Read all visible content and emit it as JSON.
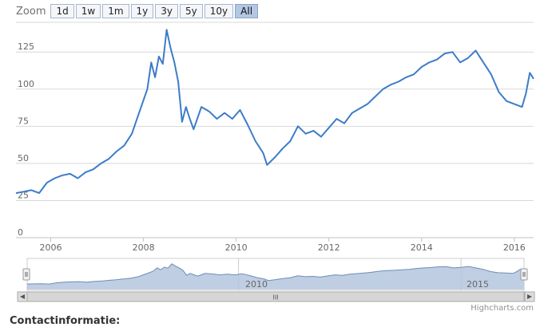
{
  "zoom": {
    "label": "Zoom",
    "buttons": [
      "1d",
      "1w",
      "1m",
      "1y",
      "3y",
      "5y",
      "10y",
      "All"
    ],
    "active": "All"
  },
  "credits": "Highcharts.com",
  "footer_text": "Contactinformatie:",
  "navigator": {
    "scrollbar_grip": "III",
    "year_labels": [
      "2010",
      "2015"
    ]
  },
  "colors": {
    "line": "#3d7cc9",
    "grid": "#d8d8d8",
    "navigator_fill": "#b4c6dd",
    "navigator_line": "#6d8db8",
    "active_button": "#b3c7e3"
  },
  "chart_data": {
    "type": "line",
    "xlim": [
      "2005-04",
      "2016-06"
    ],
    "ylim": [
      0,
      145
    ],
    "y_ticks": [
      0,
      25,
      50,
      75,
      100,
      125
    ],
    "x_tick_labels": [
      "2006",
      "2008",
      "2010",
      "2012",
      "2014",
      "2016"
    ],
    "grid": true,
    "series": [
      {
        "points": [
          [
            "2005-04",
            30
          ],
          [
            "2005-06",
            31
          ],
          [
            "2005-08",
            32
          ],
          [
            "2005-10",
            30
          ],
          [
            "2005-12",
            37
          ],
          [
            "2006-02",
            40
          ],
          [
            "2006-04",
            42
          ],
          [
            "2006-06",
            43
          ],
          [
            "2006-08",
            40
          ],
          [
            "2006-10",
            44
          ],
          [
            "2006-12",
            46
          ],
          [
            "2007-02",
            50
          ],
          [
            "2007-04",
            53
          ],
          [
            "2007-06",
            58
          ],
          [
            "2007-08",
            62
          ],
          [
            "2007-10",
            70
          ],
          [
            "2007-12",
            85
          ],
          [
            "2008-02",
            100
          ],
          [
            "2008-03",
            118
          ],
          [
            "2008-04",
            108
          ],
          [
            "2008-05",
            122
          ],
          [
            "2008-06",
            117
          ],
          [
            "2008-07",
            140
          ],
          [
            "2008-08",
            128
          ],
          [
            "2008-09",
            118
          ],
          [
            "2008-10",
            105
          ],
          [
            "2008-11",
            78
          ],
          [
            "2008-12",
            88
          ],
          [
            "2009-01",
            80
          ],
          [
            "2009-02",
            73
          ],
          [
            "2009-04",
            88
          ],
          [
            "2009-06",
            85
          ],
          [
            "2009-08",
            80
          ],
          [
            "2009-10",
            84
          ],
          [
            "2009-12",
            80
          ],
          [
            "2010-02",
            86
          ],
          [
            "2010-04",
            76
          ],
          [
            "2010-06",
            65
          ],
          [
            "2010-08",
            57
          ],
          [
            "2010-09",
            49
          ],
          [
            "2010-11",
            54
          ],
          [
            "2011-01",
            60
          ],
          [
            "2011-03",
            65
          ],
          [
            "2011-05",
            75
          ],
          [
            "2011-07",
            70
          ],
          [
            "2011-09",
            72
          ],
          [
            "2011-11",
            68
          ],
          [
            "2012-01",
            74
          ],
          [
            "2012-03",
            80
          ],
          [
            "2012-05",
            77
          ],
          [
            "2012-07",
            84
          ],
          [
            "2012-09",
            87
          ],
          [
            "2012-11",
            90
          ],
          [
            "2013-01",
            95
          ],
          [
            "2013-03",
            100
          ],
          [
            "2013-05",
            103
          ],
          [
            "2013-07",
            105
          ],
          [
            "2013-09",
            108
          ],
          [
            "2013-11",
            110
          ],
          [
            "2014-01",
            115
          ],
          [
            "2014-03",
            118
          ],
          [
            "2014-05",
            120
          ],
          [
            "2014-07",
            124
          ],
          [
            "2014-09",
            125
          ],
          [
            "2014-11",
            118
          ],
          [
            "2015-01",
            121
          ],
          [
            "2015-03",
            126
          ],
          [
            "2015-05",
            118
          ],
          [
            "2015-07",
            110
          ],
          [
            "2015-09",
            98
          ],
          [
            "2015-11",
            92
          ],
          [
            "2016-01",
            90
          ],
          [
            "2016-03",
            88
          ],
          [
            "2016-04",
            97
          ],
          [
            "2016-05",
            111
          ],
          [
            "2016-06",
            107
          ]
        ]
      }
    ]
  }
}
